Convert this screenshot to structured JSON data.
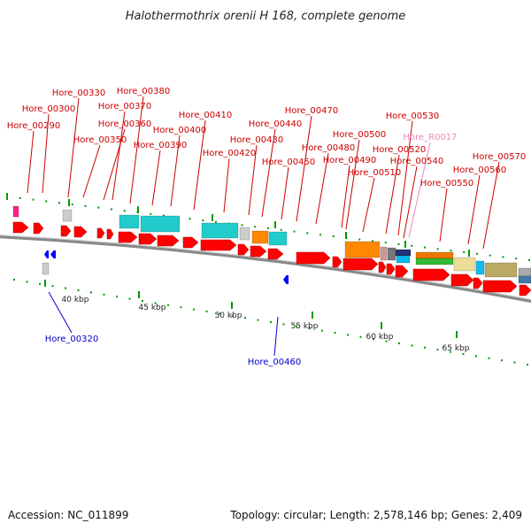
{
  "title": "Halothermothrix orenii H 168, complete genome",
  "footer": {
    "accession": "Accession: NC_011899",
    "summary": "Topology: circular; Length: 2,578,146 bp; Genes: 2,409"
  },
  "colors": {
    "forward_gene": "#ff0000",
    "reverse_gene": "#0000ff",
    "forward_label": "#cc0000",
    "rna_label": "#ee88bb",
    "reverse_label": "#0000cc",
    "tick": "#009900",
    "backbone": "#888888"
  },
  "scale": {
    "unit": "kbp",
    "ticks": [
      "40 kbp",
      "45 kbp",
      "50 kbp",
      "55 kbp",
      "60 kbp",
      "65 kbp"
    ]
  },
  "labels": {
    "forward": [
      "Hore_00290",
      "Hore_00300",
      "Hore_00330",
      "Hore_00350",
      "Hore_00360",
      "Hore_00370",
      "Hore_00380",
      "Hore_00390",
      "Hore_00400",
      "Hore_00410",
      "Hore_00420",
      "Hore_00430",
      "Hore_00440",
      "Hore_00450",
      "Hore_00470",
      "Hore_00480",
      "Hore_00490",
      "Hore_00500",
      "Hore_00510",
      "Hore_00520",
      "Hore_00530",
      "Hore_R0017",
      "Hore_00540",
      "Hore_00550",
      "Hore_00560",
      "Hore_00570"
    ],
    "reverse": [
      "Hore_00320",
      "Hore_00460"
    ]
  }
}
